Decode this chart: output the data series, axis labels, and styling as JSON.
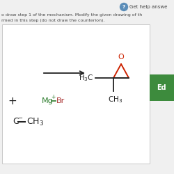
{
  "bg_color": "#f0f0f0",
  "top_area_color": "#f0f0f0",
  "box_bg": "#ffffff",
  "box_border": "#c8c8c8",
  "help_btn_color": "#5b8db8",
  "edit_btn_color": "#3d8b3d",
  "text_color": "#444444",
  "arrow_color": "#222222",
  "mg_color": "#2e7d2e",
  "br_color": "#aa3333",
  "epoxide_red": "#cc2200",
  "dark": "#222222",
  "plus_color": "#2e7d2e",
  "line1": "o draw step 1 of the mechanism. Modify the given drawing of th",
  "line2": "rmed in this step (do not draw the counterion).",
  "help_text": "Get help answe"
}
